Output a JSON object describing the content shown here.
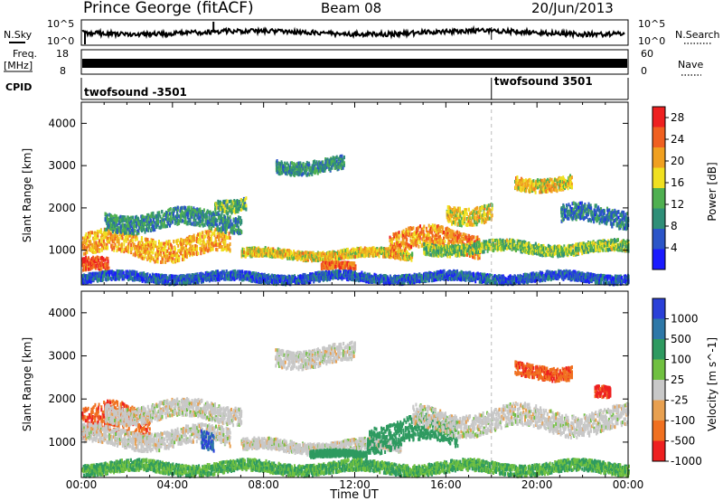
{
  "header": {
    "station": "Prince George (fitACF)",
    "beam": "Beam 08",
    "date": "20/Jun/2013"
  },
  "top_panels": {
    "nsky": {
      "label": "N.Sky",
      "ticks": [
        "10^5",
        "10^0"
      ]
    },
    "nsearch": {
      "label": "N.Search",
      "ticks": [
        "10^5",
        "10^0"
      ]
    },
    "freq": {
      "label_line1": "Freq.",
      "label_line2": "[MHz]",
      "ticks": [
        "18",
        "8"
      ]
    },
    "nave": {
      "label": "Nave",
      "ticks": [
        "60",
        "0"
      ]
    },
    "cpid": {
      "label": "CPID",
      "segments": [
        {
          "name": "twofsound -3501",
          "start_hour": 0
        },
        {
          "name": "twofsound 3501",
          "start_hour": 18
        }
      ]
    }
  },
  "colors": {
    "power_scale": [
      "#1a1aff",
      "#2b55c8",
      "#2f8f78",
      "#4fb050",
      "#f0e020",
      "#f0a020",
      "#f06020",
      "#ee2020"
    ],
    "velocity_scale": [
      "#2a40d8",
      "#2e78a8",
      "#2e9a60",
      "#70c040",
      "#c8c8c8",
      "#e8a050",
      "#f07020",
      "#ee2020"
    ],
    "marker_line": "#bbbbbb"
  },
  "chart_data": [
    {
      "type": "heatmap",
      "panel": "power",
      "xlabel": "",
      "ylabel": "Slant Range [km]",
      "xlim": [
        0,
        24
      ],
      "ylim": [
        180,
        4500
      ],
      "x_ticks": [
        "00:00",
        "04:00",
        "08:00",
        "12:00",
        "16:00",
        "20:00",
        "00:00"
      ],
      "y_ticks": [
        1000,
        2000,
        3000,
        4000
      ],
      "colorbar": {
        "label": "Power [dB]",
        "ticks": [
          4,
          8,
          12,
          16,
          20,
          24,
          28
        ],
        "range": [
          0,
          30
        ]
      },
      "echo_bands": [
        {
          "t_start": 0.0,
          "t_end": 6.5,
          "range_center": 1100,
          "range_width": 500,
          "value": 20
        },
        {
          "t_start": 0.0,
          "t_end": 1.2,
          "range_center": 600,
          "range_width": 300,
          "value": 26
        },
        {
          "t_start": 1.0,
          "t_end": 7.0,
          "range_center": 1700,
          "range_width": 400,
          "value": 10
        },
        {
          "t_start": 5.8,
          "t_end": 7.2,
          "range_center": 2100,
          "range_width": 300,
          "value": 12
        },
        {
          "t_start": 7.0,
          "t_end": 14.5,
          "range_center": 900,
          "range_width": 200,
          "value": 18
        },
        {
          "t_start": 8.5,
          "t_end": 11.5,
          "range_center": 3000,
          "range_width": 300,
          "value": 10
        },
        {
          "t_start": 10.5,
          "t_end": 12.0,
          "range_center": 600,
          "range_width": 150,
          "value": 24
        },
        {
          "t_start": 13.5,
          "t_end": 17.5,
          "range_center": 1200,
          "range_width": 500,
          "value": 22
        },
        {
          "t_start": 16.0,
          "t_end": 18.0,
          "range_center": 1900,
          "range_width": 400,
          "value": 18
        },
        {
          "t_start": 15.0,
          "t_end": 24.0,
          "range_center": 1050,
          "range_width": 250,
          "value": 14
        },
        {
          "t_start": 19.0,
          "t_end": 21.5,
          "range_center": 2600,
          "range_width": 300,
          "value": 18
        },
        {
          "t_start": 21.0,
          "t_end": 24.0,
          "range_center": 1800,
          "range_width": 400,
          "value": 8
        },
        {
          "t_start": 0.0,
          "t_end": 24.0,
          "range_center": 350,
          "range_width": 200,
          "value": 6
        }
      ]
    },
    {
      "type": "heatmap",
      "panel": "velocity",
      "xlabel": "Time UT",
      "ylabel": "Slant Range [km]",
      "xlim": [
        0,
        24
      ],
      "ylim": [
        180,
        4500
      ],
      "x_ticks": [
        "00:00",
        "04:00",
        "08:00",
        "12:00",
        "16:00",
        "20:00",
        "00:00"
      ],
      "y_ticks": [
        1000,
        2000,
        3000,
        4000
      ],
      "colorbar": {
        "label": "Velocity [m s^-1]",
        "ticks": [
          "1000",
          "500",
          "100",
          "25",
          "-25",
          "-100",
          "-500",
          "-1000"
        ]
      },
      "echo_bands": [
        {
          "t_start": 0.0,
          "t_end": 3.0,
          "range_center": 1400,
          "range_width": 700,
          "value": -400
        },
        {
          "t_start": 0.0,
          "t_end": 6.5,
          "range_center": 1100,
          "range_width": 400,
          "value": 0
        },
        {
          "t_start": 1.0,
          "t_end": 7.0,
          "range_center": 1700,
          "range_width": 400,
          "value": 0
        },
        {
          "t_start": 5.2,
          "t_end": 5.8,
          "range_center": 1100,
          "range_width": 400,
          "value": 600
        },
        {
          "t_start": 7.0,
          "t_end": 14.0,
          "range_center": 900,
          "range_width": 250,
          "value": 0
        },
        {
          "t_start": 8.5,
          "t_end": 12.0,
          "range_center": 3000,
          "range_width": 400,
          "value": 0
        },
        {
          "t_start": 10.0,
          "t_end": 12.5,
          "range_center": 700,
          "range_width": 150,
          "value": 200
        },
        {
          "t_start": 12.5,
          "t_end": 16.5,
          "range_center": 1200,
          "range_width": 600,
          "value": 200
        },
        {
          "t_start": 14.5,
          "t_end": 24.0,
          "range_center": 1500,
          "range_width": 500,
          "value": 0
        },
        {
          "t_start": 19.0,
          "t_end": 21.5,
          "range_center": 2650,
          "range_width": 300,
          "value": -400
        },
        {
          "t_start": 22.5,
          "t_end": 23.2,
          "range_center": 2100,
          "range_width": 250,
          "value": -600
        },
        {
          "t_start": 0.0,
          "t_end": 24.0,
          "range_center": 400,
          "range_width": 250,
          "value": 60
        }
      ]
    }
  ]
}
